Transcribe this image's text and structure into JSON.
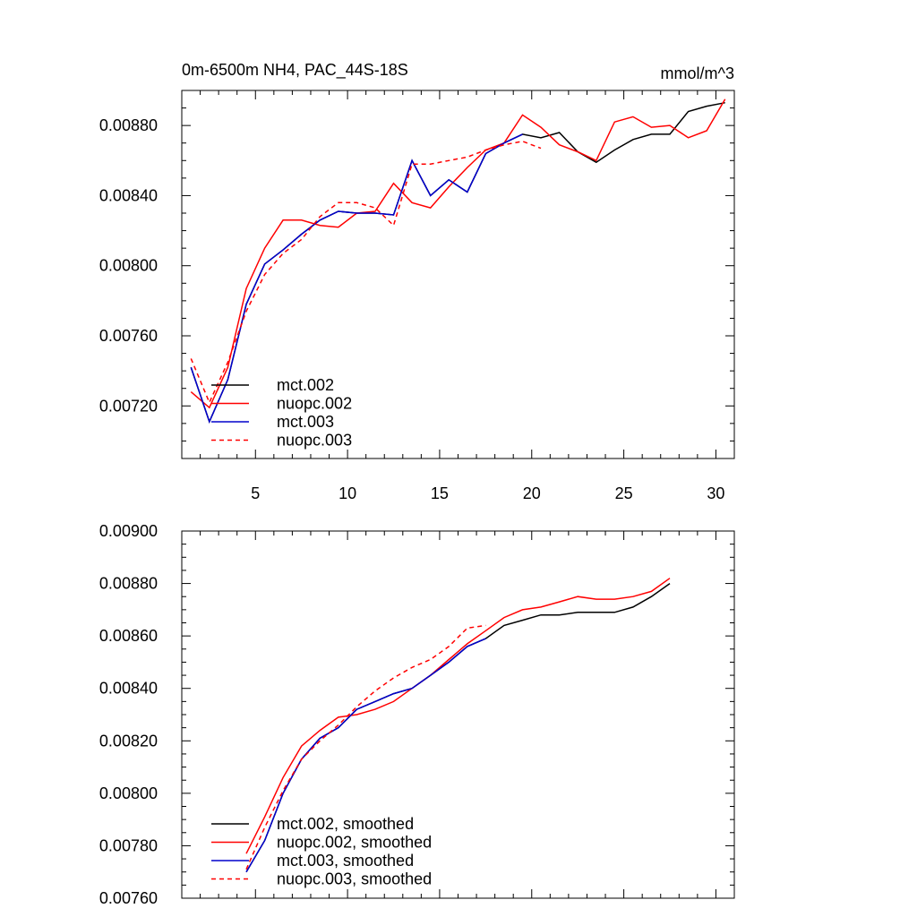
{
  "chart_data": [
    {
      "type": "line",
      "title": "0m-6500m NH4, PAC_44S-18S",
      "units": "mmol/m^3",
      "xlim": [
        1,
        31
      ],
      "ylim": [
        0.0069,
        0.009
      ],
      "xticks": [
        5,
        10,
        15,
        20,
        25,
        30
      ],
      "yticks": [
        0.0072,
        0.0076,
        0.008,
        0.0084,
        0.0088
      ],
      "ytick_labels": [
        "0.00720",
        "0.00760",
        "0.00800",
        "0.00840",
        "0.00880"
      ],
      "legend_position": "bottom-left",
      "series": [
        {
          "name": "mct.002",
          "color": "#000000",
          "dashed": false,
          "x": [
            1.5,
            2.5,
            3.5,
            4.5,
            5.5,
            6.5,
            7.5,
            8.5,
            9.5,
            10.5,
            11.5,
            12.5,
            13.5,
            14.5,
            15.5,
            16.5,
            17.5,
            18.5,
            19.5,
            20.5,
            21.5,
            22.5,
            23.5,
            24.5,
            25.5,
            26.5,
            27.5,
            28.5,
            29.5,
            30.5
          ],
          "y": [
            0.00742,
            0.00711,
            0.00735,
            0.00778,
            0.00801,
            0.00809,
            0.00818,
            0.00826,
            0.00831,
            0.0083,
            0.0083,
            0.00829,
            0.0086,
            0.0084,
            0.00849,
            0.00842,
            0.00864,
            0.0087,
            0.00875,
            0.00873,
            0.00876,
            0.00865,
            0.00859,
            0.00866,
            0.00872,
            0.00875,
            0.00875,
            0.00888,
            0.00891,
            0.00893
          ]
        },
        {
          "name": "nuopc.002",
          "color": "#ff0000",
          "dashed": false,
          "x": [
            1.5,
            2.5,
            3.5,
            4.5,
            5.5,
            6.5,
            7.5,
            8.5,
            9.5,
            10.5,
            11.5,
            12.5,
            13.5,
            14.5,
            15.5,
            16.5,
            17.5,
            18.5,
            19.5,
            20.5,
            21.5,
            22.5,
            23.5,
            24.5,
            25.5,
            26.5,
            27.5,
            28.5,
            29.5,
            30.5
          ],
          "y": [
            0.00728,
            0.00719,
            0.00742,
            0.00787,
            0.0081,
            0.00826,
            0.00826,
            0.00823,
            0.00822,
            0.0083,
            0.00831,
            0.00847,
            0.00836,
            0.00833,
            0.00845,
            0.00856,
            0.00866,
            0.0087,
            0.00886,
            0.00879,
            0.00869,
            0.00865,
            0.0086,
            0.00882,
            0.00885,
            0.00879,
            0.0088,
            0.00873,
            0.00877,
            0.00895
          ]
        },
        {
          "name": "mct.003",
          "color": "#0000cc",
          "dashed": false,
          "x": [
            1.5,
            2.5,
            3.5,
            4.5,
            5.5,
            6.5,
            7.5,
            8.5,
            9.5,
            10.5,
            11.5,
            12.5,
            13.5,
            14.5,
            15.5,
            16.5,
            17.5,
            18.5,
            19.5
          ],
          "y": [
            0.00742,
            0.00711,
            0.00735,
            0.00778,
            0.00801,
            0.00809,
            0.00818,
            0.00826,
            0.00831,
            0.0083,
            0.0083,
            0.00829,
            0.0086,
            0.0084,
            0.00849,
            0.00842,
            0.00864,
            0.0087,
            0.00875
          ]
        },
        {
          "name": "nuopc.003",
          "color": "#ff0000",
          "dashed": true,
          "x": [
            1.5,
            2.5,
            3.5,
            4.5,
            5.5,
            6.5,
            7.5,
            8.5,
            9.5,
            10.5,
            11.5,
            12.5,
            13.5,
            14.5,
            15.5,
            16.5,
            17.5,
            18.5,
            19.5,
            20.5
          ],
          "y": [
            0.00747,
            0.00722,
            0.00745,
            0.00774,
            0.00795,
            0.00807,
            0.00815,
            0.00828,
            0.00836,
            0.00836,
            0.00833,
            0.00823,
            0.00858,
            0.00858,
            0.0086,
            0.00862,
            0.00866,
            0.00869,
            0.00871,
            0.00867
          ]
        }
      ]
    },
    {
      "type": "line",
      "title": "",
      "xlim": [
        1,
        31
      ],
      "ylim": [
        0.0076,
        0.009
      ],
      "xticks": [
        5,
        10,
        15,
        20,
        25,
        30
      ],
      "yticks": [
        0.0076,
        0.0078,
        0.008,
        0.0082,
        0.0084,
        0.0086,
        0.0088,
        0.009
      ],
      "ytick_labels": [
        "0.00760",
        "0.00780",
        "0.00800",
        "0.00820",
        "0.00840",
        "0.00860",
        "0.00880",
        "0.00900"
      ],
      "legend_position": "bottom-left",
      "series": [
        {
          "name": "mct.002, smoothed",
          "color": "#000000",
          "dashed": false,
          "x": [
            4.5,
            5.5,
            6.5,
            7.5,
            8.5,
            9.5,
            10.5,
            11.5,
            12.5,
            13.5,
            14.5,
            15.5,
            16.5,
            17.5,
            18.5,
            19.5,
            20.5,
            21.5,
            22.5,
            23.5,
            24.5,
            25.5,
            26.5,
            27.5
          ],
          "y": [
            0.0077,
            0.00782,
            0.008,
            0.00813,
            0.00821,
            0.00825,
            0.00832,
            0.00835,
            0.00838,
            0.0084,
            0.00845,
            0.0085,
            0.00856,
            0.00859,
            0.00864,
            0.00866,
            0.00868,
            0.00868,
            0.00869,
            0.00869,
            0.00869,
            0.00871,
            0.00875,
            0.0088
          ]
        },
        {
          "name": "nuopc.002, smoothed",
          "color": "#ff0000",
          "dashed": false,
          "x": [
            4.5,
            5.5,
            6.5,
            7.5,
            8.5,
            9.5,
            10.5,
            11.5,
            12.5,
            13.5,
            14.5,
            15.5,
            16.5,
            17.5,
            18.5,
            19.5,
            20.5,
            21.5,
            22.5,
            23.5,
            24.5,
            25.5,
            26.5,
            27.5
          ],
          "y": [
            0.00777,
            0.00791,
            0.00806,
            0.00818,
            0.00824,
            0.00829,
            0.0083,
            0.00832,
            0.00835,
            0.0084,
            0.00845,
            0.00851,
            0.00857,
            0.00862,
            0.00867,
            0.0087,
            0.00871,
            0.00873,
            0.00875,
            0.00874,
            0.00874,
            0.00875,
            0.00877,
            0.00882
          ]
        },
        {
          "name": "mct.003, smoothed",
          "color": "#0000cc",
          "dashed": false,
          "x": [
            4.5,
            5.5,
            6.5,
            7.5,
            8.5,
            9.5,
            10.5,
            11.5,
            12.5,
            13.5,
            14.5,
            15.5,
            16.5,
            17.5
          ],
          "y": [
            0.0077,
            0.00782,
            0.008,
            0.00813,
            0.00821,
            0.00825,
            0.00832,
            0.00835,
            0.00838,
            0.0084,
            0.00845,
            0.0085,
            0.00856,
            0.00859
          ]
        },
        {
          "name": "nuopc.003, smoothed",
          "color": "#ff0000",
          "dashed": true,
          "x": [
            4.5,
            5.5,
            6.5,
            7.5,
            8.5,
            9.5,
            10.5,
            11.5,
            12.5,
            13.5,
            14.5,
            15.5,
            16.5,
            17.5
          ],
          "y": [
            0.00771,
            0.00787,
            0.00801,
            0.00813,
            0.0082,
            0.00826,
            0.00833,
            0.00839,
            0.00844,
            0.00848,
            0.00851,
            0.00856,
            0.00863,
            0.00864
          ]
        }
      ]
    }
  ]
}
